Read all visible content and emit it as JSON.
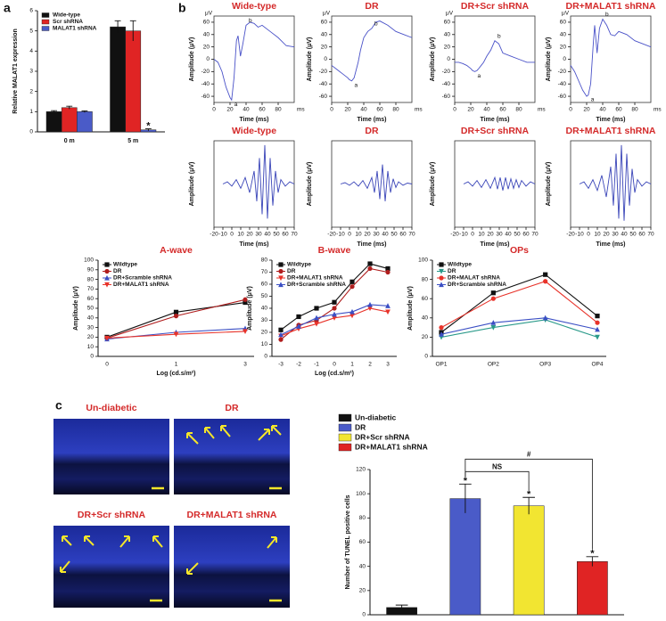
{
  "panel_labels": [
    "a",
    "b",
    "c"
  ],
  "micrographs": {
    "titles": [
      "Un-diabetic",
      "DR",
      "DR+Scr shRNA",
      "DR+MALAT1 shRNA"
    ]
  },
  "chart_data": [
    {
      "type": "bar",
      "ylabel": "Relative MALAT1 expression",
      "categories": [
        "0 m",
        "5 m"
      ],
      "series": [
        {
          "name": "Wide-type",
          "color": "#111111",
          "values": [
            1.0,
            5.2
          ],
          "errors": [
            0.05,
            0.3
          ]
        },
        {
          "name": "Scr shRNA",
          "color": "#e02424",
          "values": [
            1.2,
            5.0
          ],
          "errors": [
            0.07,
            0.5
          ]
        },
        {
          "name": "MALAT1 shRNA",
          "color": "#4a5bc8",
          "values": [
            1.0,
            0.1
          ],
          "errors": [
            0.04,
            0.05
          ]
        }
      ],
      "ylim": [
        0,
        6
      ],
      "yticks": [
        0,
        1,
        2,
        3,
        4,
        5,
        6
      ],
      "legend": "upper left",
      "annotations": [
        {
          "text": "*",
          "series": 2,
          "index": 1
        }
      ]
    },
    {
      "type": "line",
      "title": "Wide-type",
      "ylabel": "Amplitude (μV)",
      "xlabel": "Time (ms)",
      "y_unit": "μV",
      "x_unit": "ms",
      "box": true,
      "x": [
        0,
        5,
        10,
        15,
        20,
        22,
        25,
        28,
        30,
        33,
        36,
        40,
        45,
        50,
        55,
        60,
        70,
        80,
        90,
        100
      ],
      "series": [
        {
          "color": "#4a52c8",
          "values": [
            0,
            -5,
            -20,
            -45,
            -62,
            -66,
            -30,
            30,
            38,
            5,
            25,
            55,
            60,
            58,
            52,
            55,
            45,
            35,
            22,
            20
          ]
        }
      ],
      "xlim": [
        0,
        100
      ],
      "xticks": [
        0,
        20,
        40,
        60,
        80
      ],
      "ylim": [
        -70,
        70
      ],
      "yticks": [
        -60,
        -40,
        -20,
        0,
        20,
        40,
        60
      ],
      "annotations": [
        {
          "text": "a",
          "index": 5
        },
        {
          "text": "b",
          "index": 11
        }
      ]
    },
    {
      "type": "line",
      "title": "DR",
      "ylabel": "Amplitude (μV)",
      "xlabel": "Time (ms)",
      "y_unit": "μV",
      "x_unit": "ms",
      "box": true,
      "x": [
        0,
        5,
        10,
        15,
        20,
        22,
        25,
        28,
        30,
        33,
        36,
        40,
        45,
        50,
        55,
        60,
        70,
        80,
        90,
        100
      ],
      "series": [
        {
          "color": "#4a52c8",
          "values": [
            -10,
            -15,
            -20,
            -25,
            -30,
            -33,
            -35,
            -30,
            -20,
            -5,
            15,
            35,
            45,
            50,
            60,
            62,
            55,
            45,
            40,
            35
          ]
        }
      ],
      "xlim": [
        0,
        100
      ],
      "xticks": [
        0,
        20,
        40,
        60,
        80
      ],
      "ylim": [
        -70,
        70
      ],
      "yticks": [
        -60,
        -40,
        -20,
        0,
        20,
        40,
        60
      ],
      "annotations": [
        {
          "text": "a",
          "index": 6
        },
        {
          "text": "b",
          "index": 13
        }
      ]
    },
    {
      "type": "line",
      "title": "DR+Scr shRNA",
      "ylabel": "Amplitude (μV)",
      "xlabel": "Time (ms)",
      "y_unit": "μV",
      "x_unit": "ms",
      "box": true,
      "x": [
        0,
        5,
        10,
        15,
        20,
        22,
        25,
        28,
        30,
        33,
        36,
        40,
        45,
        50,
        55,
        60,
        70,
        80,
        90,
        100
      ],
      "series": [
        {
          "color": "#4a52c8",
          "values": [
            -5,
            -5,
            -7,
            -10,
            -15,
            -18,
            -20,
            -18,
            -15,
            -10,
            -5,
            5,
            15,
            30,
            25,
            10,
            5,
            0,
            -5,
            -5
          ]
        }
      ],
      "xlim": [
        0,
        100
      ],
      "xticks": [
        0,
        20,
        40,
        60,
        80
      ],
      "ylim": [
        -70,
        70
      ],
      "yticks": [
        -60,
        -40,
        -20,
        0,
        20,
        40,
        60
      ],
      "annotations": [
        {
          "text": "a",
          "index": 6
        },
        {
          "text": "b",
          "index": 13
        }
      ]
    },
    {
      "type": "line",
      "title": "DR+MALAT1 shRNA",
      "ylabel": "Amplitude (μV)",
      "xlabel": "Time (ms)",
      "y_unit": "μV",
      "x_unit": "ms",
      "box": true,
      "x": [
        0,
        5,
        10,
        15,
        20,
        22,
        25,
        28,
        30,
        33,
        36,
        40,
        45,
        50,
        55,
        60,
        70,
        80,
        90,
        100
      ],
      "series": [
        {
          "color": "#4a52c8",
          "values": [
            -10,
            -20,
            -35,
            -50,
            -60,
            -58,
            -40,
            20,
            55,
            10,
            50,
            65,
            55,
            40,
            38,
            45,
            40,
            30,
            25,
            20
          ]
        }
      ],
      "xlim": [
        0,
        100
      ],
      "xticks": [
        0,
        20,
        40,
        60,
        80
      ],
      "ylim": [
        -70,
        70
      ],
      "yticks": [
        -60,
        -40,
        -20,
        0,
        20,
        40,
        60
      ],
      "annotations": [
        {
          "text": "a",
          "index": 5
        },
        {
          "text": "b",
          "index": 11
        }
      ]
    },
    {
      "type": "line",
      "title": "Wide-type",
      "ylabel": "Amplitude (μV)",
      "xlabel": "Time (ms)",
      "box": true,
      "x": [
        -10,
        -5,
        0,
        5,
        10,
        15,
        20,
        25,
        28,
        31,
        34,
        37,
        40,
        43,
        46,
        49,
        52,
        55,
        60,
        65,
        70
      ],
      "series": [
        {
          "color": "#3a45b8",
          "values": [
            0,
            0.05,
            -0.05,
            0.1,
            -0.1,
            0.15,
            -0.2,
            0.3,
            -0.4,
            0.6,
            -0.7,
            0.9,
            -0.8,
            0.6,
            -0.5,
            0.3,
            -0.2,
            0.1,
            -0.05,
            0.05,
            0
          ]
        }
      ],
      "xlim": [
        -20,
        70
      ],
      "xticks": [
        -20,
        -10,
        0,
        10,
        20,
        30,
        40,
        50,
        60,
        70
      ],
      "ylim": [
        -1,
        1
      ]
    },
    {
      "type": "line",
      "title": "DR",
      "ylabel": "Amplitude (μV)",
      "xlabel": "Time (ms)",
      "box": true,
      "x": [
        -10,
        -5,
        0,
        5,
        10,
        15,
        20,
        25,
        28,
        31,
        34,
        37,
        40,
        43,
        46,
        49,
        52,
        55,
        60,
        65,
        70
      ],
      "series": [
        {
          "color": "#3a45b8",
          "values": [
            0,
            0.03,
            -0.03,
            0.05,
            -0.05,
            0.08,
            -0.1,
            0.15,
            -0.2,
            0.3,
            -0.35,
            0.45,
            -0.4,
            0.3,
            -0.2,
            0.12,
            -0.08,
            0.05,
            -0.03,
            0.02,
            0
          ]
        }
      ],
      "xlim": [
        -20,
        70
      ],
      "xticks": [
        -20,
        -10,
        0,
        10,
        20,
        30,
        40,
        50,
        60,
        70
      ],
      "ylim": [
        -1,
        1
      ]
    },
    {
      "type": "line",
      "title": "DR+Scr shRNA",
      "ylabel": "Amplitude (μV)",
      "xlabel": "Time (ms)",
      "box": true,
      "x": [
        -10,
        -5,
        0,
        5,
        10,
        15,
        20,
        25,
        28,
        31,
        34,
        37,
        40,
        43,
        46,
        49,
        52,
        55,
        60,
        65,
        70
      ],
      "series": [
        {
          "color": "#3a45b8",
          "values": [
            0,
            0.05,
            -0.05,
            0.08,
            -0.08,
            0.1,
            -0.1,
            0.15,
            -0.12,
            0.15,
            -0.15,
            0.15,
            -0.12,
            0.12,
            -0.1,
            0.1,
            -0.08,
            0.08,
            -0.05,
            0.05,
            0
          ]
        }
      ],
      "xlim": [
        -20,
        70
      ],
      "xticks": [
        -20,
        -10,
        0,
        10,
        20,
        30,
        40,
        50,
        60,
        70
      ],
      "ylim": [
        -1,
        1
      ]
    },
    {
      "type": "line",
      "title": "DR+MALAT1 shRNA",
      "ylabel": "Amplitude (μV)",
      "xlabel": "Time (ms)",
      "box": true,
      "x": [
        -10,
        -5,
        0,
        5,
        10,
        15,
        20,
        25,
        28,
        31,
        34,
        37,
        40,
        43,
        46,
        49,
        52,
        55,
        60,
        65,
        70
      ],
      "series": [
        {
          "color": "#3a45b8",
          "values": [
            0,
            0.05,
            -0.1,
            0.1,
            -0.15,
            0.2,
            -0.3,
            0.4,
            -0.5,
            0.7,
            -0.8,
            0.9,
            -0.85,
            0.7,
            -0.5,
            0.35,
            -0.2,
            0.1,
            -0.05,
            0.05,
            0
          ]
        }
      ],
      "xlim": [
        -20,
        70
      ],
      "xticks": [
        -20,
        -10,
        0,
        10,
        20,
        30,
        40,
        50,
        60,
        70
      ],
      "ylim": [
        -1,
        1
      ]
    },
    {
      "type": "line",
      "title": "A-wave",
      "ylabel": "Amplitude (μV)",
      "xlabel": "Log (cd.s/m²)",
      "categories": [
        "0",
        "1",
        "3"
      ],
      "series": [
        {
          "name": "Wildtype",
          "color": "#111111",
          "marker": "square",
          "values": [
            20,
            46,
            56
          ]
        },
        {
          "name": "DR",
          "color": "#b01e1e",
          "marker": "circle",
          "values": [
            19,
            42,
            59
          ]
        },
        {
          "name": "DR+Scramble shRNA",
          "color": "#3b4fc4",
          "marker": "triangle",
          "values": [
            18,
            25,
            29
          ]
        },
        {
          "name": "DR+MALAT1 shRNA",
          "color": "#e8332a",
          "marker": "triangle-down",
          "values": [
            19,
            23,
            26
          ]
        }
      ],
      "ylim": [
        0,
        100
      ],
      "yticks": [
        0,
        10,
        20,
        30,
        40,
        50,
        60,
        70,
        80,
        90,
        100
      ],
      "legend": "upper left"
    },
    {
      "type": "line",
      "title": "B-wave",
      "ylabel": "Amplitude (μV)",
      "xlabel": "Log (cd.s/m²)",
      "categories": [
        "-3",
        "-2",
        "-1",
        "0",
        "1",
        "2",
        "3"
      ],
      "series": [
        {
          "name": "Wildtype",
          "color": "#111111",
          "marker": "square",
          "values": [
            22,
            33,
            40,
            45,
            62,
            77,
            73
          ]
        },
        {
          "name": "DR",
          "color": "#b01e1e",
          "marker": "circle",
          "values": [
            14,
            26,
            30,
            40,
            58,
            73,
            70
          ]
        },
        {
          "name": "DR+MALAT1 shRNA",
          "color": "#e8332a",
          "marker": "triangle-down",
          "values": [
            17,
            23,
            27,
            32,
            34,
            40,
            37
          ]
        },
        {
          "name": "DR+Scramble shRNA",
          "color": "#3b4fc4",
          "marker": "triangle",
          "values": [
            18,
            25,
            32,
            35,
            37,
            43,
            42
          ]
        }
      ],
      "ylim": [
        0,
        80
      ],
      "yticks": [
        0,
        10,
        20,
        30,
        40,
        50,
        60,
        70,
        80
      ],
      "legend": "upper left"
    },
    {
      "type": "line",
      "title": "OPs",
      "ylabel": "Amplitude (μV)",
      "categories": [
        "OP1",
        "OP2",
        "OP3",
        "OP4"
      ],
      "series": [
        {
          "name": "Wildtype",
          "color": "#111111",
          "marker": "square",
          "values": [
            25,
            66,
            85,
            42
          ]
        },
        {
          "name": "DR",
          "color": "#2a9a8a",
          "marker": "triangle-down",
          "values": [
            20,
            30,
            38,
            20
          ]
        },
        {
          "name": "DR+MALAT shRNA",
          "color": "#e8332a",
          "marker": "circle",
          "values": [
            30,
            60,
            78,
            35
          ]
        },
        {
          "name": "DR+Scramble shRNA",
          "color": "#3b4fc4",
          "marker": "triangle",
          "values": [
            23,
            35,
            40,
            28
          ]
        }
      ],
      "ylim": [
        0,
        100
      ],
      "yticks": [
        0,
        20,
        40,
        60,
        80,
        100
      ],
      "legend": "upper left"
    },
    {
      "type": "bar",
      "ylabel": "Number of TUNEL positive cells",
      "series": [
        {
          "name": "Un-diabetic",
          "color": "#111111",
          "values": [
            6
          ],
          "errors": [
            2
          ]
        },
        {
          "name": "DR",
          "color": "#4a5bc8",
          "values": [
            96
          ],
          "errors": [
            12
          ]
        },
        {
          "name": "DR+Scr shRNA",
          "color": "#f2e531",
          "values": [
            90
          ],
          "errors": [
            7
          ]
        },
        {
          "name": "DR+MALAT1 shRNA",
          "color": "#e02424",
          "values": [
            44
          ],
          "errors": [
            4
          ]
        }
      ],
      "ylim": [
        0,
        120
      ],
      "yticks": [
        0,
        20,
        40,
        60,
        80,
        100,
        120
      ],
      "legend": "above",
      "annotations": [
        {
          "text": "*",
          "series": 1,
          "index": 0
        },
        {
          "text": "*",
          "series": 2,
          "index": 0
        },
        {
          "text": "*",
          "series": 3,
          "index": 0
        },
        {
          "text": "NS",
          "from": 1,
          "to": 2
        },
        {
          "text": "#",
          "from": 1,
          "to": 3
        }
      ]
    }
  ]
}
